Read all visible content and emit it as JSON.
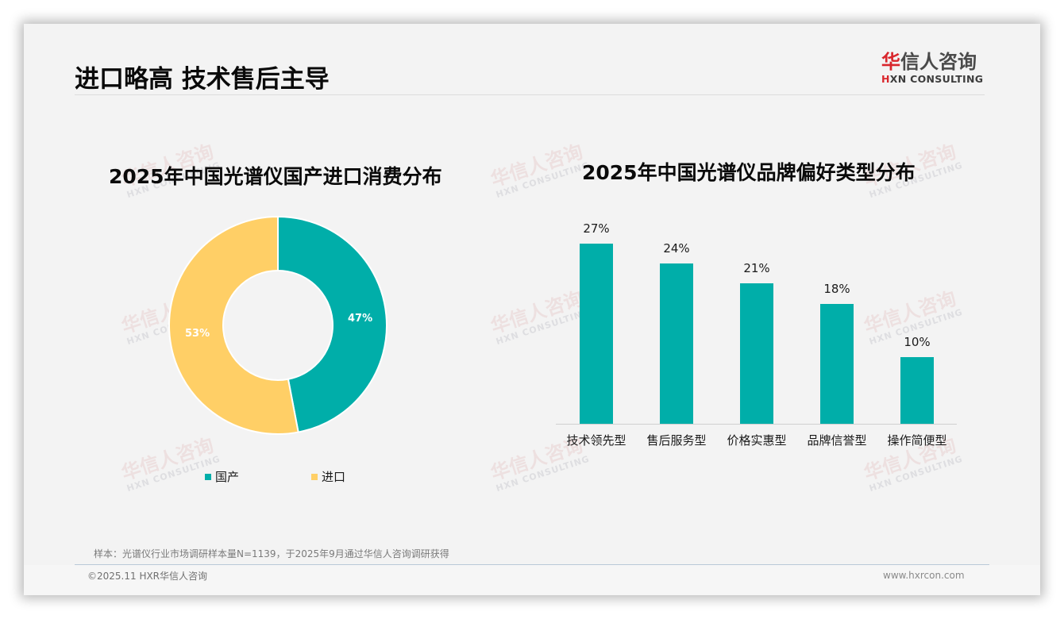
{
  "header": {
    "title": "进口略高 技术售后主导",
    "logo": {
      "cn_accent": "华",
      "cn_rest": "信人咨询",
      "en_mark": "H",
      "en_rest": "XN CONSULTING"
    }
  },
  "watermark": {
    "cn": "华信人咨询",
    "en": "HXN CONSULTING"
  },
  "colors": {
    "domestic": "#00aea9",
    "import": "#ffcf66",
    "bar": "#00aea9",
    "logo_red": "#d9262c"
  },
  "chart_data": [
    {
      "type": "pie",
      "variant": "donut",
      "title": "2025年中国光谱仪国产进口消费分布",
      "categories": [
        "国产",
        "进口"
      ],
      "values": [
        47,
        53
      ],
      "value_labels": [
        "47%",
        "53%"
      ],
      "colors": [
        "#00aea9",
        "#ffcf66"
      ],
      "legend_position": "bottom",
      "legend": [
        {
          "label": "国产",
          "color": "#00aea9"
        },
        {
          "label": "进口",
          "color": "#ffcf66"
        }
      ]
    },
    {
      "type": "bar",
      "title": "2025年中国光谱仪品牌偏好类型分布",
      "categories": [
        "技术领先型",
        "售后服务型",
        "价格实惠型",
        "品牌信誉型",
        "操作简便型"
      ],
      "values": [
        27,
        24,
        21,
        18,
        10
      ],
      "value_labels": [
        "27%",
        "24%",
        "21%",
        "18%",
        "10%"
      ],
      "xlabel": "",
      "ylabel": "",
      "unit": "%",
      "ylim": [
        0,
        30
      ],
      "grid": false,
      "color": "#00aea9"
    }
  ],
  "footer": {
    "footnote": "样本：光谱仪行业市场调研样本量N=1139，于2025年9月通过华信人咨询调研获得",
    "copyright": "©2025.11 HXR华信人咨询",
    "website": "www.hxrcon.com"
  }
}
